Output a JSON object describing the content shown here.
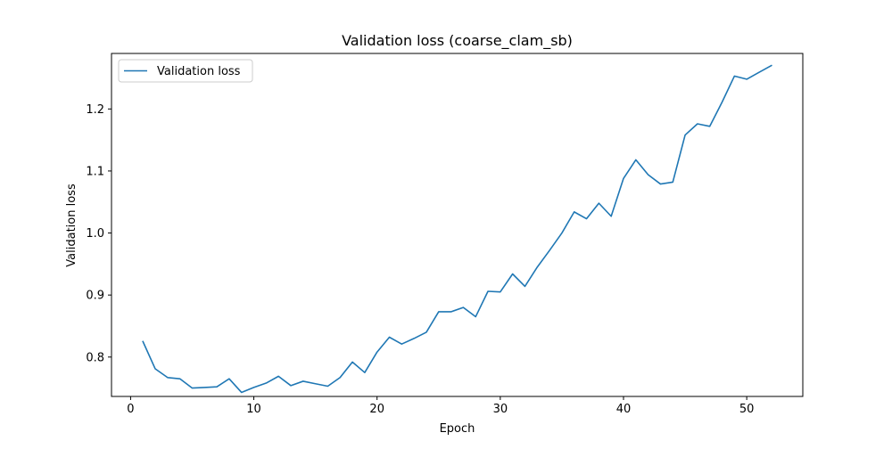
{
  "chart_data": {
    "type": "line",
    "title": "Validation loss (coarse_clam_sb)",
    "xlabel": "Epoch",
    "ylabel": "Validation loss",
    "xlim": [
      -1.55,
      54.55
    ],
    "ylim": [
      0.7365,
      1.2895
    ],
    "xticks": [
      0,
      10,
      20,
      30,
      40,
      50
    ],
    "xtick_labels": [
      "0",
      "10",
      "20",
      "30",
      "40",
      "50"
    ],
    "yticks": [
      0.8,
      0.9,
      1.0,
      1.1,
      1.2
    ],
    "ytick_labels": [
      "0.8",
      "0.9",
      "1.0",
      "1.1",
      "1.2"
    ],
    "grid": false,
    "legend_position": "upper-left",
    "color": "#1f77b4",
    "series": [
      {
        "name": "Validation loss",
        "x": [
          1,
          2,
          3,
          4,
          5,
          6,
          7,
          8,
          9,
          10,
          11,
          12,
          13,
          14,
          15,
          16,
          17,
          18,
          19,
          20,
          21,
          22,
          23,
          24,
          25,
          26,
          27,
          28,
          29,
          30,
          31,
          32,
          33,
          34,
          35,
          36,
          37,
          38,
          39,
          40,
          41,
          42,
          43,
          44,
          45,
          46,
          47,
          48,
          49,
          50,
          51,
          52
        ],
        "y": [
          0.825,
          0.781,
          0.767,
          0.765,
          0.75,
          0.751,
          0.752,
          0.765,
          0.743,
          0.751,
          0.758,
          0.769,
          0.754,
          0.761,
          0.757,
          0.753,
          0.767,
          0.792,
          0.775,
          0.808,
          0.832,
          0.821,
          0.83,
          0.84,
          0.873,
          0.873,
          0.88,
          0.865,
          0.906,
          0.905,
          0.934,
          0.914,
          0.945,
          0.972,
          1.0,
          1.034,
          1.023,
          1.048,
          1.027,
          1.088,
          1.118,
          1.094,
          1.079,
          1.082,
          1.158,
          1.176,
          1.172,
          1.211,
          1.253,
          1.248,
          1.259,
          1.27
        ]
      }
    ]
  }
}
